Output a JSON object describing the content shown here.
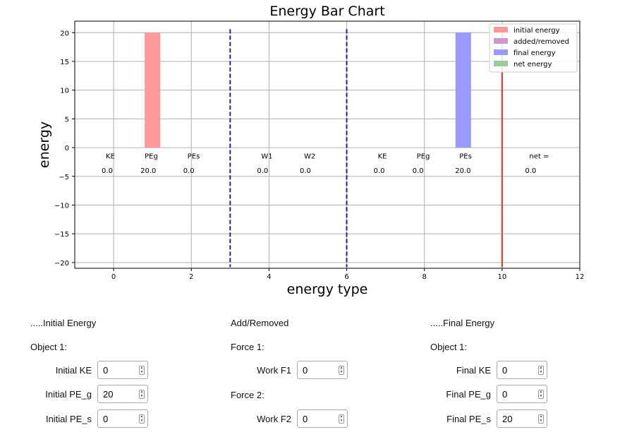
{
  "chart_data": {
    "type": "bar",
    "title": "Energy Bar Chart",
    "xlabel": "energy type",
    "ylabel": "energy",
    "xlim": [
      -1,
      12
    ],
    "ylim": [
      -21,
      22
    ],
    "xticks": [
      0,
      2,
      4,
      6,
      8,
      10,
      12
    ],
    "yticks": [
      -20,
      -15,
      -10,
      -5,
      0,
      5,
      10,
      15,
      20
    ],
    "grid": true,
    "legend_position": "top-right",
    "series": [
      {
        "name": "initial energy",
        "color": "#ff9999",
        "x": [
          0,
          1,
          2
        ],
        "values": [
          0,
          20,
          0
        ]
      },
      {
        "name": "added/removed",
        "color": "#cc99cc",
        "x": [
          4,
          5
        ],
        "values": [
          0,
          0
        ]
      },
      {
        "name": "final energy",
        "color": "#9999ff",
        "x": [
          7,
          8,
          9
        ],
        "values": [
          0,
          0,
          20
        ]
      },
      {
        "name": "net energy",
        "color": "#99cc99",
        "x": [
          11
        ],
        "values": [
          0
        ]
      }
    ],
    "bar_width": 0.4,
    "dividers": [
      {
        "x": 3,
        "style": "dashed",
        "color": "#1f1f9e"
      },
      {
        "x": 6,
        "style": "dashed",
        "color": "#1f1f9e"
      },
      {
        "x": 10,
        "style": "solid",
        "color": "#e03030"
      }
    ],
    "annotations": [
      {
        "x": -0.2,
        "label": "KE",
        "value": "0.0"
      },
      {
        "x": 0.8,
        "label": "PEg",
        "value": "20.0"
      },
      {
        "x": 1.9,
        "label": "PEs",
        "value": "0.0"
      },
      {
        "x": 3.8,
        "label": "W1",
        "value": "0.0"
      },
      {
        "x": 4.9,
        "label": "W2",
        "value": "0.0"
      },
      {
        "x": 6.8,
        "label": "KE",
        "value": "0.0"
      },
      {
        "x": 7.8,
        "label": "PEg",
        "value": "0.0"
      },
      {
        "x": 8.9,
        "label": "PEs",
        "value": "20.0"
      },
      {
        "x": 10.7,
        "label": "net =",
        "value": "0.0"
      }
    ]
  },
  "initial": {
    "heading": ".....Initial Energy",
    "object_label": "Object 1:",
    "ke_label": "Initial KE",
    "ke_value": "0",
    "peg_label": "Initial PE_g",
    "peg_value": "20",
    "pes_label": "Initial PE_s",
    "pes_value": "0"
  },
  "added": {
    "heading": "Add/Removed",
    "force1_label": "Force 1:",
    "work1_label": "Work F1",
    "work1_value": "0",
    "force2_label": "Force 2:",
    "work2_label": "Work F2",
    "work2_value": "0"
  },
  "final": {
    "heading": ".....Final Energy",
    "object_label": "Object 1:",
    "ke_label": "Final KE",
    "ke_value": "0",
    "peg_label": "Final PE_g",
    "peg_value": "0",
    "pes_label": "Final PE_s",
    "pes_value": "20"
  }
}
